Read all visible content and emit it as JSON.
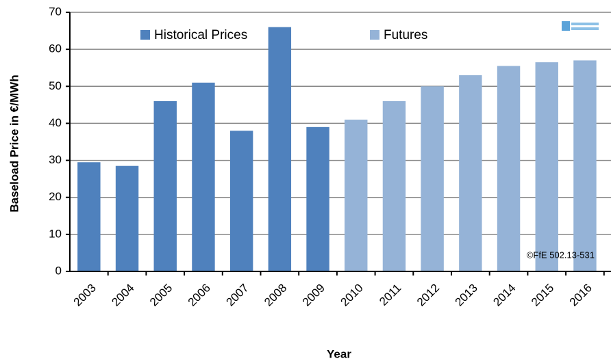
{
  "chart_data": {
    "type": "bar",
    "categories": [
      "2003",
      "2004",
      "2005",
      "2006",
      "2007",
      "2008",
      "2009",
      "2010",
      "2011",
      "2012",
      "2013",
      "2014",
      "2015",
      "2016"
    ],
    "series": [
      {
        "name": "Historical Prices",
        "color": "#4f81bd",
        "values": [
          29.5,
          28.5,
          46,
          51,
          38,
          66,
          39,
          null,
          null,
          null,
          null,
          null,
          null,
          null
        ]
      },
      {
        "name": "Futures",
        "color": "#95b3d7",
        "values": [
          null,
          null,
          null,
          null,
          null,
          null,
          null,
          41,
          46,
          50,
          53,
          55.5,
          56.5,
          57
        ]
      }
    ],
    "x_label": "Year",
    "y_label": "Baseload Price in €/MWh",
    "annotation": "©FfE 502.13-531",
    "ylim": [
      0,
      70
    ],
    "yticks": [
      0,
      10,
      20,
      30,
      40,
      50,
      60,
      70
    ],
    "grid": true
  }
}
